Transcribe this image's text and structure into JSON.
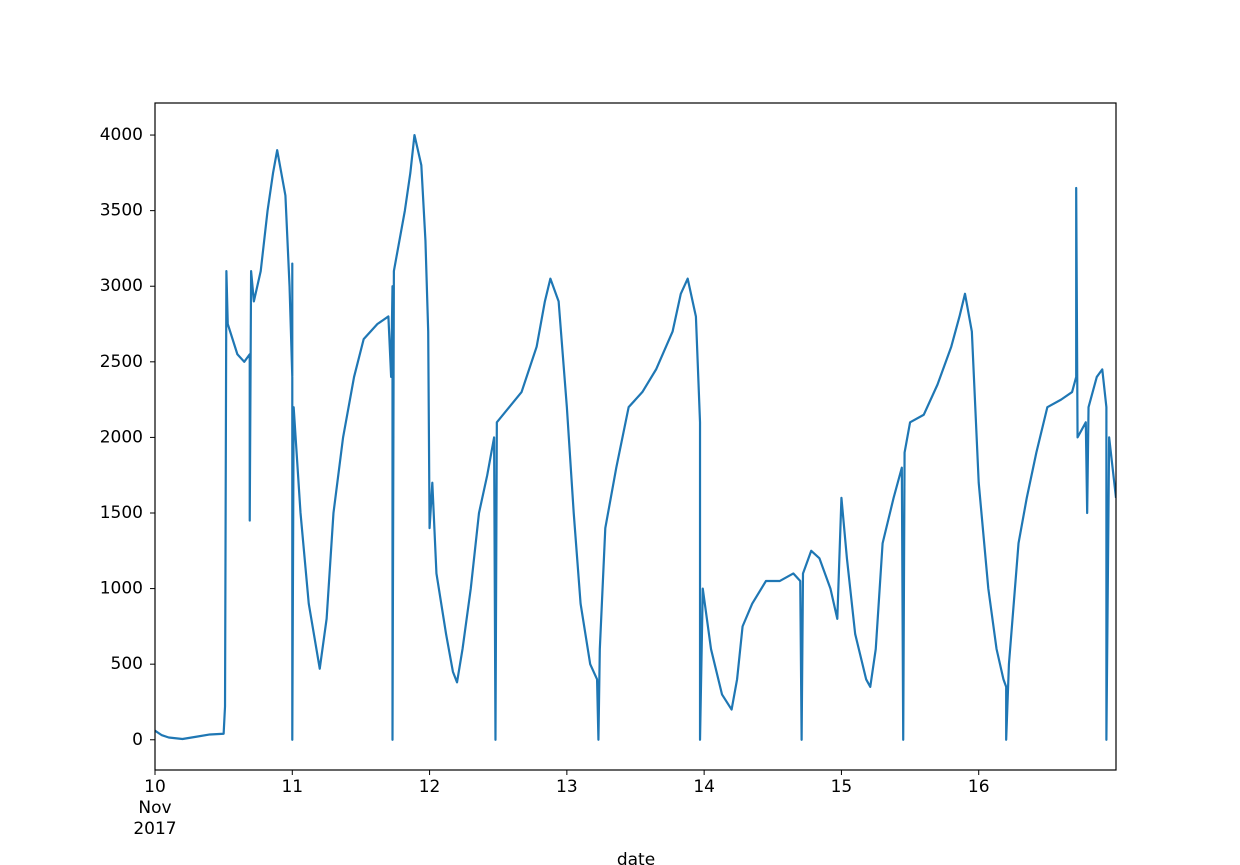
{
  "chart_data": {
    "type": "line",
    "xlabel": "date",
    "x": [
      10.0,
      10.05,
      10.1,
      10.2,
      10.3,
      10.4,
      10.5,
      10.51,
      10.52,
      10.53,
      10.6,
      10.65,
      10.69,
      10.69,
      10.7,
      10.72,
      10.77,
      10.82,
      10.86,
      10.89,
      10.95,
      10.98,
      11.0,
      11.0,
      11.0,
      11.01,
      11.06,
      11.12,
      11.2,
      11.25,
      11.3,
      11.37,
      11.45,
      11.52,
      11.62,
      11.7,
      11.72,
      11.73,
      11.73,
      11.74,
      11.76,
      11.82,
      11.86,
      11.89,
      11.94,
      11.97,
      11.99,
      12.0,
      12.02,
      12.05,
      12.12,
      12.17,
      12.2,
      12.24,
      12.3,
      12.36,
      12.42,
      12.47,
      12.48,
      12.49,
      12.58,
      12.67,
      12.78,
      12.84,
      12.88,
      12.94,
      13.0,
      13.05,
      13.1,
      13.17,
      13.22,
      13.23,
      13.24,
      13.28,
      13.36,
      13.45,
      13.55,
      13.65,
      13.77,
      13.83,
      13.88,
      13.94,
      13.97,
      13.97,
      13.99,
      14.05,
      14.13,
      14.2,
      14.24,
      14.28,
      14.35,
      14.45,
      14.55,
      14.65,
      14.7,
      14.71,
      14.72,
      14.78,
      14.84,
      14.92,
      14.97,
      15.0,
      15.04,
      15.1,
      15.18,
      15.21,
      15.25,
      15.3,
      15.38,
      15.44,
      15.45,
      15.46,
      15.5,
      15.6,
      15.7,
      15.8,
      15.86,
      15.9,
      15.95,
      16.0,
      16.07,
      16.13,
      16.18,
      16.2,
      16.2,
      16.22,
      16.29,
      16.35,
      16.42,
      16.5,
      16.6,
      16.68,
      16.71,
      16.71,
      16.72,
      16.78,
      16.79,
      16.8,
      16.86,
      16.9,
      16.93,
      16.93,
      16.95,
      17.0
    ],
    "values": [
      60,
      30,
      15,
      5,
      20,
      35,
      40,
      220,
      3100,
      2750,
      2550,
      2500,
      2550,
      1450,
      3100,
      2900,
      3100,
      3500,
      3750,
      3900,
      3600,
      3000,
      2400,
      3150,
      0,
      2200,
      1500,
      900,
      470,
      800,
      1500,
      2000,
      2400,
      2650,
      2750,
      2800,
      2400,
      3000,
      0,
      3100,
      3200,
      3500,
      3750,
      4000,
      3800,
      3300,
      2700,
      1400,
      1700,
      1100,
      700,
      450,
      380,
      600,
      1000,
      1500,
      1750,
      2000,
      0,
      2100,
      2200,
      2300,
      2600,
      2900,
      3050,
      2900,
      2200,
      1500,
      900,
      500,
      400,
      0,
      600,
      1400,
      1800,
      2200,
      2300,
      2450,
      2700,
      2950,
      3050,
      2800,
      2100,
      0,
      1000,
      600,
      300,
      200,
      400,
      750,
      900,
      1050,
      1050,
      1100,
      1050,
      0,
      1100,
      1250,
      1200,
      1000,
      800,
      1600,
      1200,
      700,
      400,
      350,
      600,
      1300,
      1600,
      1800,
      0,
      1900,
      2100,
      2150,
      2350,
      2600,
      2800,
      2950,
      2700,
      1700,
      1000,
      600,
      400,
      350,
      0,
      500,
      1300,
      1600,
      1900,
      2200,
      2250,
      2300,
      2400,
      3650,
      2000,
      2100,
      1500,
      2200,
      2400,
      2450,
      2200,
      0,
      2000,
      1600
    ],
    "color": "#1f77b4",
    "xlim": [
      10,
      17
    ],
    "xticks": [
      {
        "value": 10,
        "label": "10\nNov\n2017"
      },
      11,
      12,
      13,
      14,
      15,
      16
    ],
    "ylim": [
      -200,
      4212
    ],
    "yticks": [
      0,
      500,
      1000,
      1500,
      2000,
      2500,
      3000,
      3500,
      4000
    ]
  }
}
